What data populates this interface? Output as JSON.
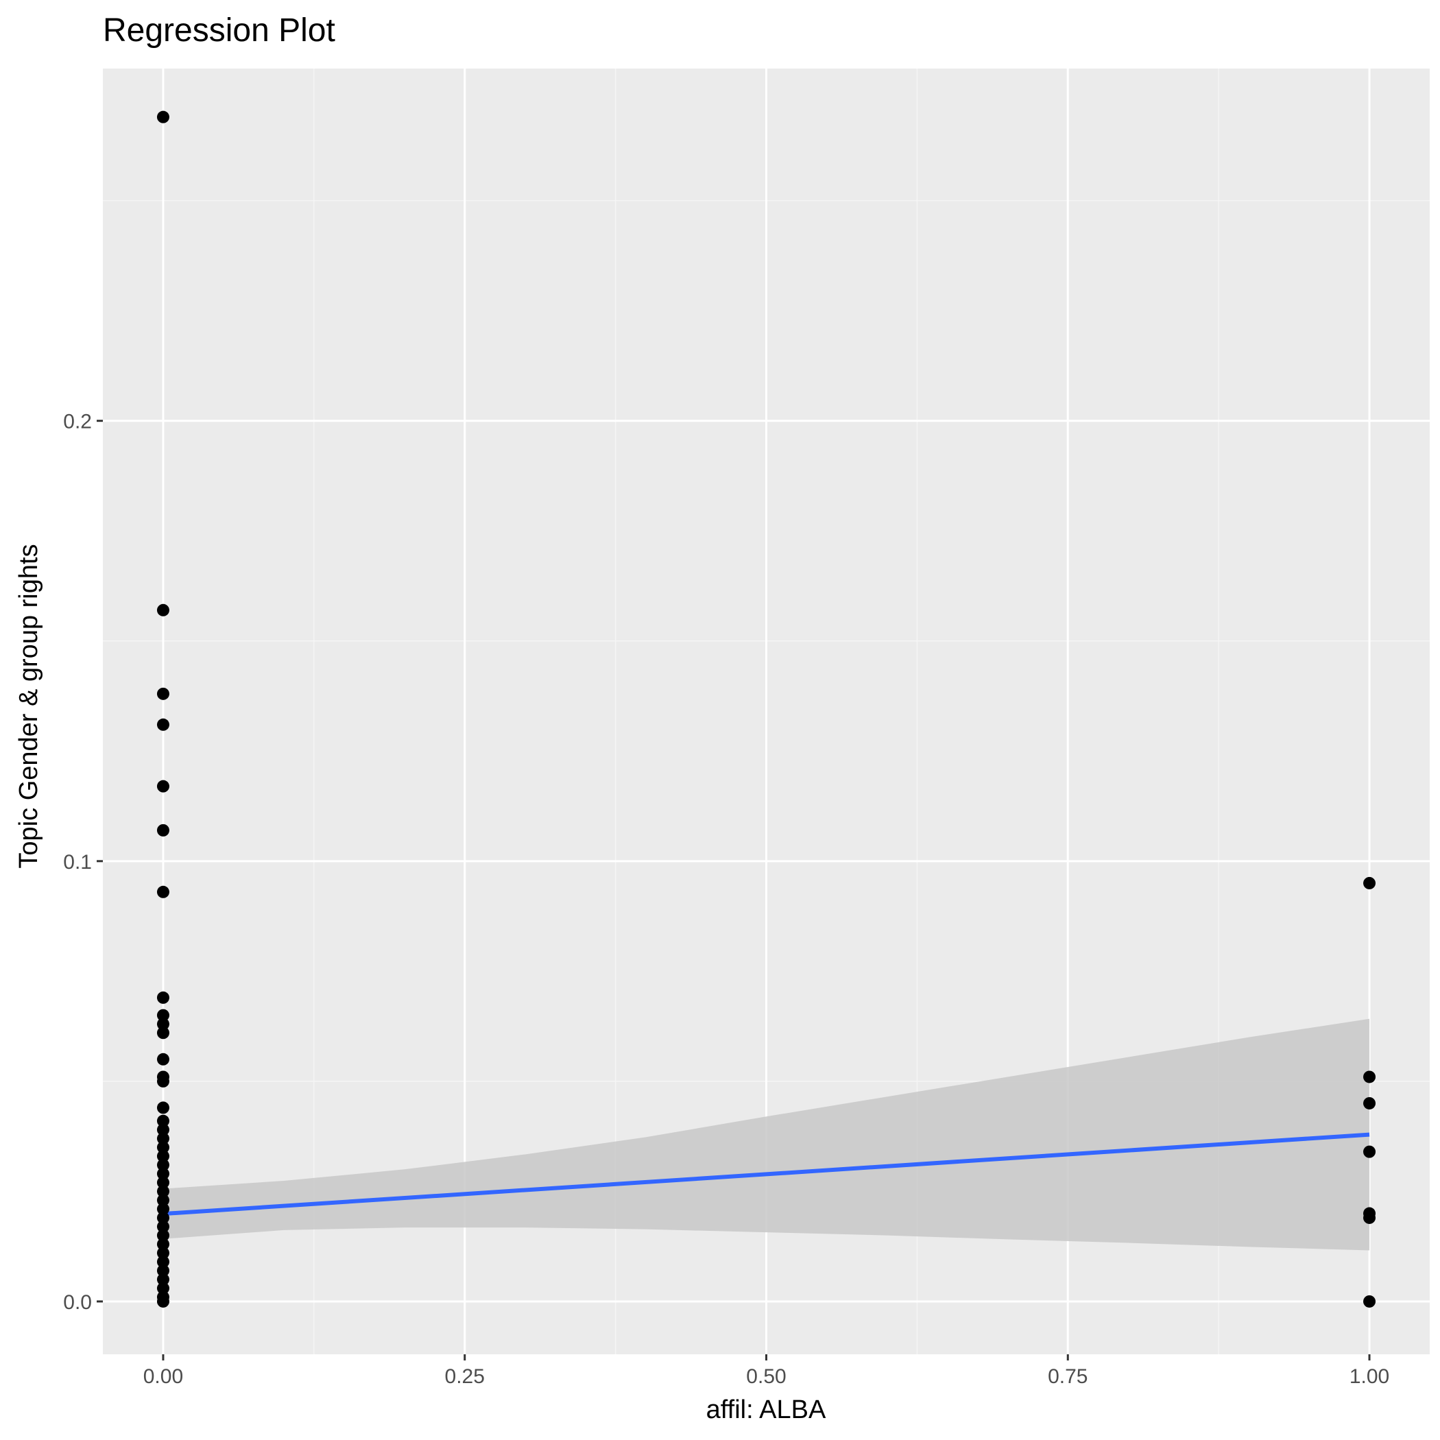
{
  "chart_data": {
    "type": "scatter",
    "title": "Regression Plot",
    "xlabel": "affil: ALBA",
    "ylabel": "Topic Gender & group rights",
    "xlim": [
      -0.05,
      1.05
    ],
    "ylim": [
      -0.012,
      0.28
    ],
    "x_ticks": [
      0.0,
      0.25,
      0.5,
      0.75,
      1.0
    ],
    "x_tick_labels": [
      "0.00",
      "0.25",
      "0.50",
      "0.75",
      "1.00"
    ],
    "y_ticks": [
      0.0,
      0.1,
      0.2
    ],
    "y_tick_labels": [
      "0.0",
      "0.1",
      "0.2"
    ],
    "grid": true,
    "legend": "none",
    "points": [
      {
        "x": 0,
        "y": 0.269
      },
      {
        "x": 0,
        "y": 0.157
      },
      {
        "x": 0,
        "y": 0.138
      },
      {
        "x": 0,
        "y": 0.131
      },
      {
        "x": 0,
        "y": 0.117
      },
      {
        "x": 0,
        "y": 0.107
      },
      {
        "x": 0,
        "y": 0.093
      },
      {
        "x": 0,
        "y": 0.069
      },
      {
        "x": 0,
        "y": 0.065
      },
      {
        "x": 0,
        "y": 0.063
      },
      {
        "x": 0,
        "y": 0.061
      },
      {
        "x": 0,
        "y": 0.055
      },
      {
        "x": 0,
        "y": 0.051
      },
      {
        "x": 0,
        "y": 0.05
      },
      {
        "x": 0,
        "y": 0.044
      },
      {
        "x": 0,
        "y": 0.041
      },
      {
        "x": 0,
        "y": 0.039
      },
      {
        "x": 0,
        "y": 0.037
      },
      {
        "x": 0,
        "y": 0.035
      },
      {
        "x": 0,
        "y": 0.033
      },
      {
        "x": 0,
        "y": 0.031
      },
      {
        "x": 0,
        "y": 0.029
      },
      {
        "x": 0,
        "y": 0.027
      },
      {
        "x": 0,
        "y": 0.025
      },
      {
        "x": 0,
        "y": 0.023
      },
      {
        "x": 0,
        "y": 0.021
      },
      {
        "x": 0,
        "y": 0.019
      },
      {
        "x": 0,
        "y": 0.017
      },
      {
        "x": 0,
        "y": 0.015
      },
      {
        "x": 0,
        "y": 0.013
      },
      {
        "x": 0,
        "y": 0.011
      },
      {
        "x": 0,
        "y": 0.009
      },
      {
        "x": 0,
        "y": 0.007
      },
      {
        "x": 0,
        "y": 0.005
      },
      {
        "x": 0,
        "y": 0.003
      },
      {
        "x": 0,
        "y": 0.001
      },
      {
        "x": 0,
        "y": 0.0
      },
      {
        "x": 1,
        "y": 0.095
      },
      {
        "x": 1,
        "y": 0.051
      },
      {
        "x": 1,
        "y": 0.045
      },
      {
        "x": 1,
        "y": 0.034
      },
      {
        "x": 1,
        "y": 0.02
      },
      {
        "x": 1,
        "y": 0.019
      },
      {
        "x": 1,
        "y": 0.0
      }
    ],
    "regression_line": {
      "x": [
        0,
        1
      ],
      "y": [
        0.0199,
        0.0379
      ]
    },
    "confidence_band": [
      {
        "x": 0.0,
        "lower": 0.0142,
        "upper": 0.0256
      },
      {
        "x": 0.1,
        "lower": 0.0162,
        "upper": 0.0274
      },
      {
        "x": 0.2,
        "lower": 0.0168,
        "upper": 0.03
      },
      {
        "x": 0.3,
        "lower": 0.0168,
        "upper": 0.0334
      },
      {
        "x": 0.4,
        "lower": 0.0164,
        "upper": 0.0373
      },
      {
        "x": 0.5,
        "lower": 0.0157,
        "upper": 0.042
      },
      {
        "x": 0.6,
        "lower": 0.015,
        "upper": 0.0465
      },
      {
        "x": 0.7,
        "lower": 0.0141,
        "upper": 0.051
      },
      {
        "x": 0.8,
        "lower": 0.0133,
        "upper": 0.0555
      },
      {
        "x": 0.9,
        "lower": 0.0124,
        "upper": 0.06
      },
      {
        "x": 1.0,
        "lower": 0.0116,
        "upper": 0.0642
      }
    ],
    "colors": {
      "panel": "#ebebeb",
      "grid_major": "#ffffff",
      "grid_minor": "#f5f5f5",
      "point": "#000000",
      "line": "#3366ff",
      "band": "#c8c8c8",
      "tick": "#333333"
    }
  }
}
